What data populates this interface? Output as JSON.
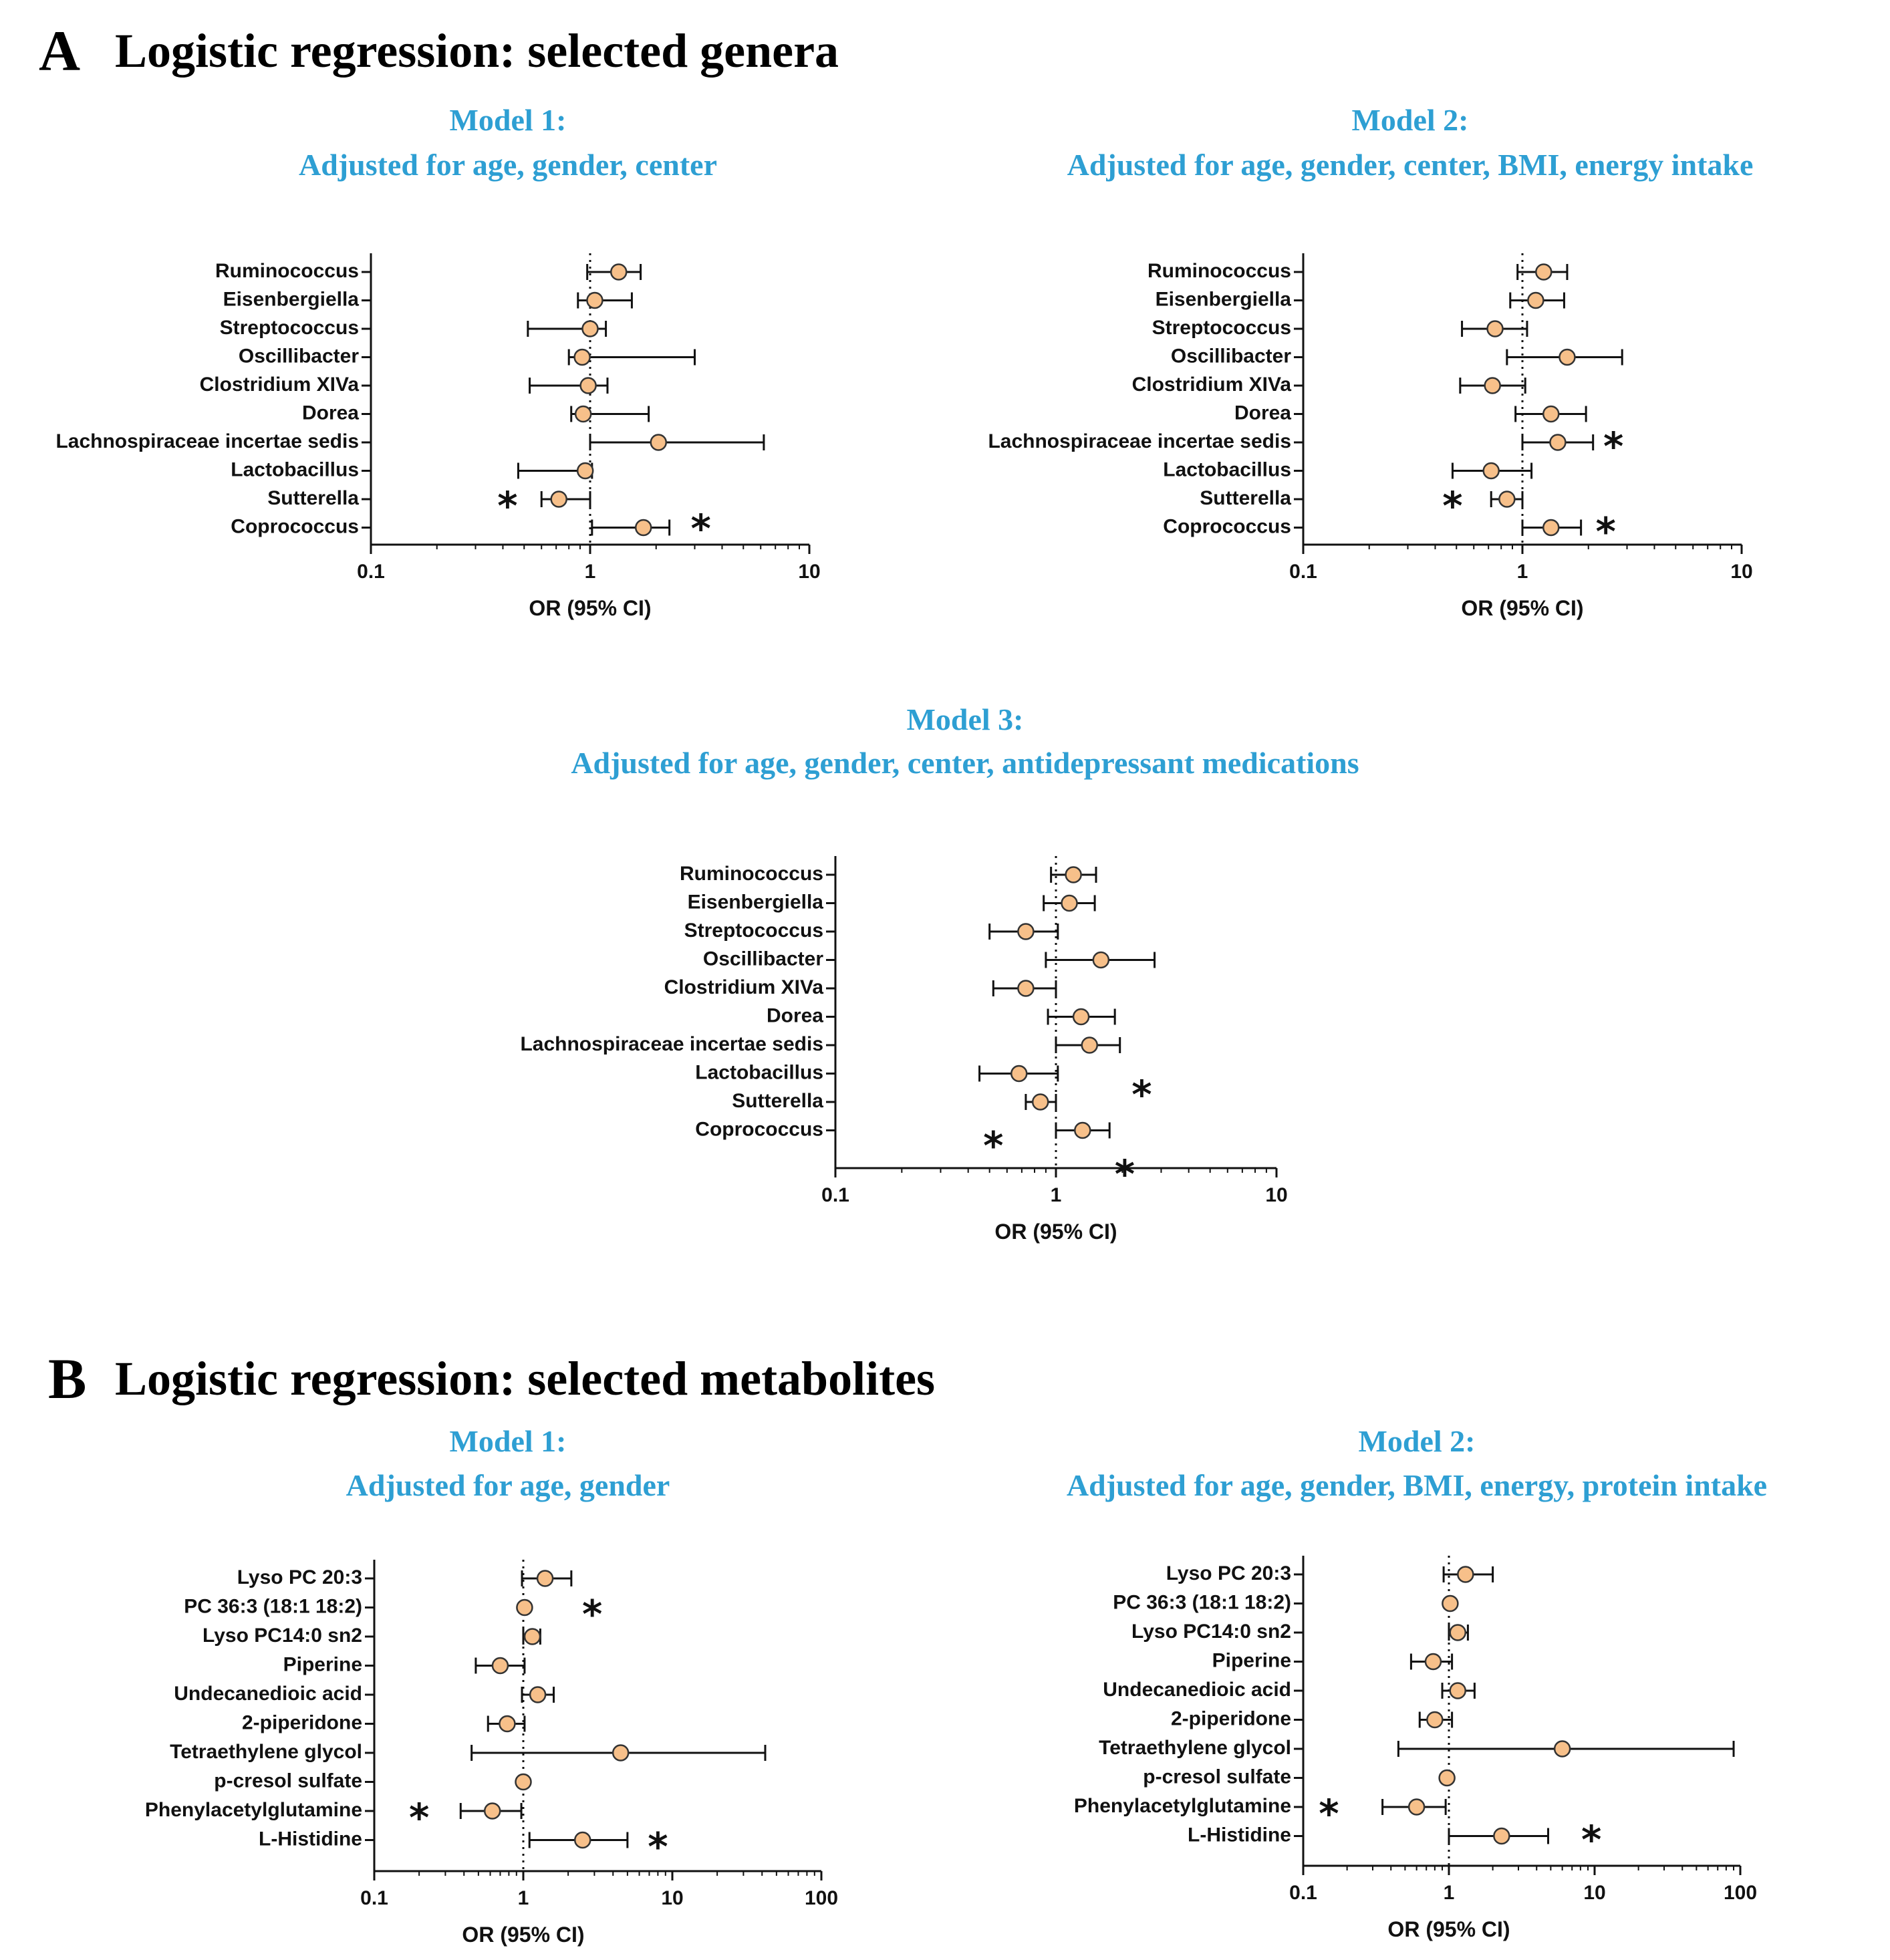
{
  "colors": {
    "title": "#2e9fd3",
    "point_fill": "#f7c08a",
    "point_stroke": "#333333",
    "line": "#111111"
  },
  "panels": [
    {
      "letter": "A",
      "title": "Logistic regression: selected genera"
    },
    {
      "letter": "B",
      "title": "Logistic regression: selected metabolites"
    }
  ],
  "chart_data": [
    {
      "type": "forest",
      "panel": "A",
      "title_line1": "Model 1:",
      "title_line2": "Adjusted for age, gender, center",
      "xlabel": "OR (95% CI)",
      "xscale": "log",
      "xlim": [
        0.1,
        10
      ],
      "xticks": [
        0.1,
        1,
        10
      ],
      "xtick_labels": [
        "0.1",
        "1",
        "10"
      ],
      "categories": [
        "Ruminococcus",
        "Eisenbergiella",
        "Streptococcus",
        "Oscillibacter",
        "Clostridium XIVa",
        "Dorea",
        "Lachnospiraceae incertae sedis",
        "Lactobacillus",
        "Sutterella",
        "Coprococcus"
      ],
      "or": [
        1.35,
        1.05,
        1.0,
        0.92,
        0.98,
        0.93,
        2.05,
        0.95,
        0.72,
        1.75
      ],
      "ci_low": [
        0.97,
        0.88,
        0.52,
        0.8,
        0.53,
        0.82,
        1.0,
        0.47,
        0.6,
        1.02
      ],
      "ci_high": [
        1.7,
        1.55,
        1.18,
        3.0,
        1.2,
        1.85,
        6.2,
        1.02,
        1.0,
        2.3
      ],
      "stars": [
        {
          "x": 0.42,
          "row": 8.0
        },
        {
          "x": 3.2,
          "row": 8.8
        }
      ]
    },
    {
      "type": "forest",
      "panel": "A",
      "title_line1": "Model 2:",
      "title_line2": "Adjusted for age, gender, center, BMI, energy intake",
      "xlabel": "OR (95% CI)",
      "xscale": "log",
      "xlim": [
        0.1,
        10
      ],
      "xticks": [
        0.1,
        1,
        10
      ],
      "xtick_labels": [
        "0.1",
        "1",
        "10"
      ],
      "categories": [
        "Ruminococcus",
        "Eisenbergiella",
        "Streptococcus",
        "Oscillibacter",
        "Clostridium XIVa",
        "Dorea",
        "Lachnospiraceae incertae sedis",
        "Lactobacillus",
        "Sutterella",
        "Coprococcus"
      ],
      "or": [
        1.25,
        1.15,
        0.75,
        1.6,
        0.73,
        1.35,
        1.45,
        0.72,
        0.85,
        1.35
      ],
      "ci_low": [
        0.95,
        0.88,
        0.53,
        0.85,
        0.52,
        0.93,
        1.0,
        0.48,
        0.72,
        1.0
      ],
      "ci_high": [
        1.6,
        1.55,
        1.05,
        2.85,
        1.03,
        1.95,
        2.1,
        1.1,
        1.0,
        1.85
      ],
      "stars": [
        {
          "x": 2.6,
          "row": 5.9
        },
        {
          "x": 0.48,
          "row": 8.0
        },
        {
          "x": 2.4,
          "row": 8.9
        }
      ]
    },
    {
      "type": "forest",
      "panel": "A",
      "title_line1": "Model 3:",
      "title_line2": "Adjusted for age, gender, center, antidepressant medications",
      "xlabel": "OR (95% CI)",
      "xscale": "log",
      "xlim": [
        0.1,
        10
      ],
      "xticks": [
        0.1,
        1,
        10
      ],
      "xtick_labels": [
        "0.1",
        "1",
        "10"
      ],
      "categories": [
        "Ruminococcus",
        "Eisenbergiella",
        "Streptococcus",
        "Oscillibacter",
        "Clostridium XIVa",
        "Dorea",
        "Lachnospiraceae incertae sedis",
        "Lactobacillus",
        "Sutterella",
        "Coprococcus"
      ],
      "or": [
        1.2,
        1.15,
        0.73,
        1.6,
        0.73,
        1.3,
        1.42,
        0.68,
        0.85,
        1.32
      ],
      "ci_low": [
        0.95,
        0.88,
        0.5,
        0.9,
        0.52,
        0.92,
        1.0,
        0.45,
        0.73,
        1.0
      ],
      "ci_high": [
        1.52,
        1.5,
        1.02,
        2.8,
        1.0,
        1.85,
        1.95,
        1.02,
        1.0,
        1.75
      ],
      "stars": [
        {
          "x": 2.45,
          "row": 7.5
        },
        {
          "x": 0.52,
          "row": 9.3
        },
        {
          "x": 2.05,
          "row": 10.3
        }
      ]
    },
    {
      "type": "forest",
      "panel": "B",
      "title_line1": "Model 1:",
      "title_line2": "Adjusted for age, gender",
      "xlabel": "OR (95% CI)",
      "xscale": "log",
      "xlim": [
        0.1,
        100
      ],
      "xticks": [
        0.1,
        1,
        10,
        100
      ],
      "xtick_labels": [
        "0.1",
        "1",
        "10",
        "100"
      ],
      "categories": [
        "Lyso PC 20:3",
        "PC 36:3 (18:1 18:2)",
        "Lyso PC14:0 sn2",
        "Piperine",
        "Undecanedioic acid",
        "2-piperidone",
        "Tetraethylene glycol",
        "p-cresol sulfate",
        "Phenylacetylglutamine",
        "L-Histidine"
      ],
      "or": [
        1.4,
        1.02,
        1.15,
        0.7,
        1.25,
        0.78,
        4.5,
        1.0,
        0.62,
        2.5
      ],
      "ci_low": [
        0.98,
        1.02,
        1.0,
        0.48,
        0.98,
        0.58,
        0.45,
        1.0,
        0.38,
        1.1
      ],
      "ci_high": [
        2.1,
        1.02,
        1.3,
        1.02,
        1.6,
        1.02,
        42.0,
        1.0,
        0.97,
        5.0
      ],
      "stars": [
        {
          "x": 2.9,
          "row": 1.0
        },
        {
          "x": 0.2,
          "row": 8.0
        },
        {
          "x": 8.0,
          "row": 9.0
        }
      ]
    },
    {
      "type": "forest",
      "panel": "B",
      "title_line1": "Model 2:",
      "title_line2": "Adjusted for age, gender, BMI, energy, protein intake",
      "xlabel": "OR (95% CI)",
      "xscale": "log",
      "xlim": [
        0.1,
        100
      ],
      "xticks": [
        0.1,
        1,
        10,
        100
      ],
      "xtick_labels": [
        "0.1",
        "1",
        "10",
        "100"
      ],
      "categories": [
        "Lyso PC 20:3",
        "PC 36:3 (18:1 18:2)",
        "Lyso PC14:0 sn2",
        "Piperine",
        "Undecanedioic acid",
        "2-piperidone",
        "Tetraethylene glycol",
        "p-cresol sulfate",
        "Phenylacetylglutamine",
        "L-Histidine"
      ],
      "or": [
        1.3,
        1.02,
        1.15,
        0.78,
        1.15,
        0.8,
        6.0,
        0.97,
        0.6,
        2.3
      ],
      "ci_low": [
        0.92,
        1.02,
        1.0,
        0.55,
        0.9,
        0.63,
        0.45,
        0.97,
        0.35,
        1.0
      ],
      "ci_high": [
        2.0,
        1.02,
        1.35,
        1.05,
        1.5,
        1.05,
        90.0,
        0.97,
        0.95,
        4.8
      ],
      "stars": [
        {
          "x": 0.15,
          "row": 8.0
        },
        {
          "x": 9.5,
          "row": 8.9
        }
      ]
    }
  ]
}
